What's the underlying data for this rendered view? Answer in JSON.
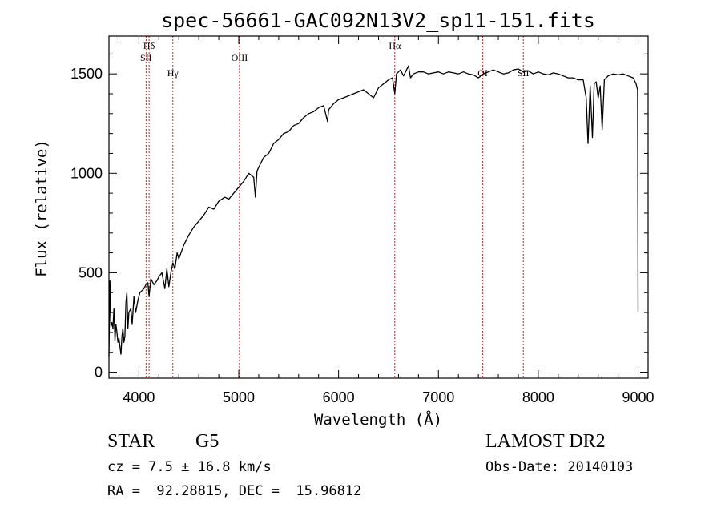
{
  "chart_data": {
    "type": "line",
    "title": "spec-56661-GAC092N13V2_sp11-151.fits",
    "xlabel": "Wavelength (Å)",
    "ylabel": "Flux (relative)",
    "xlim": [
      3700,
      9100
    ],
    "ylim": [
      -30,
      1690
    ],
    "xticks": [
      4000,
      5000,
      6000,
      7000,
      8000,
      9000
    ],
    "yticks": [
      0,
      500,
      1000,
      1500
    ],
    "grid": false,
    "line_color": "#000000",
    "marker_color": "#cc2222",
    "series": [
      {
        "x": [
          3700,
          3710,
          3720,
          3730,
          3740,
          3750,
          3760,
          3770,
          3780,
          3790,
          3800,
          3810,
          3820,
          3830,
          3840,
          3850,
          3860,
          3870,
          3880,
          3890,
          3900,
          3920,
          3933,
          3950,
          3968,
          3990,
          4010,
          4030,
          4050,
          4070,
          4090,
          4102,
          4120,
          4150,
          4180,
          4200,
          4230,
          4260,
          4280,
          4300,
          4320,
          4340,
          4360,
          4383,
          4400,
          4450,
          4500,
          4550,
          4600,
          4650,
          4700,
          4750,
          4800,
          4861,
          4900,
          4950,
          5000,
          5050,
          5100,
          5150,
          5167,
          5183,
          5200,
          5250,
          5300,
          5350,
          5400,
          5450,
          5500,
          5550,
          5600,
          5650,
          5700,
          5750,
          5800,
          5850,
          5890,
          5900,
          5950,
          6000,
          6050,
          6100,
          6150,
          6200,
          6250,
          6300,
          6350,
          6400,
          6450,
          6500,
          6540,
          6563,
          6580,
          6620,
          6650,
          6700,
          6720,
          6750,
          6800,
          6850,
          6900,
          6950,
          7000,
          7050,
          7100,
          7150,
          7200,
          7250,
          7300,
          7350,
          7400,
          7450,
          7500,
          7550,
          7600,
          7650,
          7700,
          7750,
          7800,
          7850,
          7900,
          7950,
          8000,
          8050,
          8100,
          8150,
          8200,
          8250,
          8300,
          8350,
          8400,
          8450,
          8480,
          8498,
          8520,
          8542,
          8560,
          8580,
          8600,
          8620,
          8640,
          8662,
          8680,
          8700,
          8750,
          8800,
          8850,
          8900,
          8950,
          8980,
          8995,
          9000
        ],
        "y": [
          80,
          460,
          230,
          250,
          220,
          320,
          160,
          240,
          200,
          150,
          170,
          130,
          90,
          180,
          220,
          150,
          180,
          350,
          400,
          220,
          300,
          320,
          240,
          380,
          300,
          360,
          400,
          410,
          420,
          440,
          450,
          380,
          470,
          440,
          460,
          480,
          500,
          420,
          520,
          430,
          500,
          550,
          520,
          600,
          570,
          640,
          690,
          730,
          760,
          790,
          830,
          820,
          860,
          880,
          870,
          900,
          930,
          960,
          1000,
          980,
          880,
          1010,
          1030,
          1080,
          1100,
          1150,
          1170,
          1200,
          1210,
          1240,
          1250,
          1280,
          1300,
          1310,
          1330,
          1340,
          1260,
          1320,
          1350,
          1370,
          1380,
          1390,
          1400,
          1410,
          1420,
          1400,
          1380,
          1430,
          1450,
          1470,
          1480,
          1400,
          1500,
          1520,
          1490,
          1540,
          1480,
          1500,
          1510,
          1510,
          1500,
          1505,
          1510,
          1500,
          1510,
          1505,
          1500,
          1510,
          1500,
          1495,
          1480,
          1500,
          1510,
          1520,
          1510,
          1500,
          1505,
          1520,
          1525,
          1510,
          1515,
          1500,
          1510,
          1500,
          1495,
          1505,
          1500,
          1490,
          1480,
          1480,
          1470,
          1470,
          1380,
          1150,
          1440,
          1180,
          1450,
          1460,
          1380,
          1440,
          1220,
          1470,
          1480,
          1490,
          1500,
          1495,
          1500,
          1490,
          1480,
          1450,
          1420,
          300
        ]
      }
    ],
    "line_markers": [
      {
        "label": "Hδ",
        "x": 4102,
        "label_level": 1
      },
      {
        "label": "SII",
        "x": 4072,
        "label_level": 2
      },
      {
        "label": "Hγ",
        "x": 4340,
        "label_level": 3
      },
      {
        "label": "OIII",
        "x": 5007,
        "label_level": 2
      },
      {
        "label": "Hα",
        "x": 6563,
        "label_level": 1
      },
      {
        "label": "OI",
        "x": 7444,
        "label_level": 3
      },
      {
        "label": "SII",
        "x": 7850,
        "label_level": 3
      }
    ]
  },
  "info": {
    "class": "STAR",
    "subclass": "G5",
    "survey": "LAMOST DR2",
    "cz": "cz = 7.5 ± 16.8 km/s",
    "obs_date": "Obs-Date: 20140103",
    "coords": "RA =  92.28815, DEC =  15.96812"
  }
}
